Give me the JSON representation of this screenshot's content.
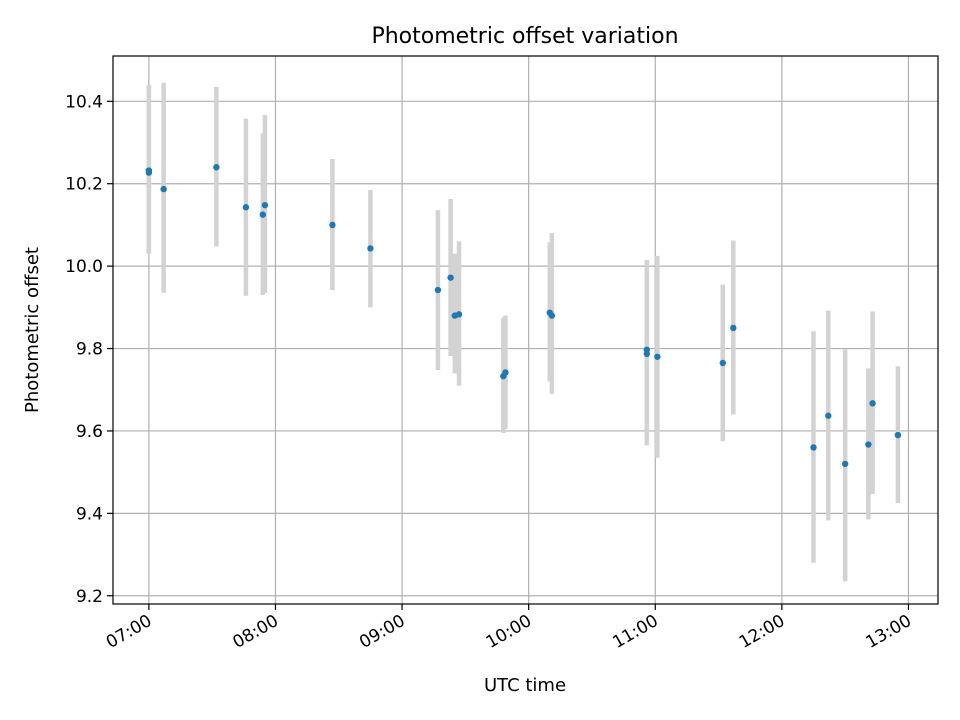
{
  "chart_data": {
    "type": "scatter",
    "title": "Photometric offset variation",
    "xlabel": "UTC time",
    "ylabel": "Photometric offset",
    "xlim": [
      "06:43",
      "13:14"
    ],
    "ylim": [
      9.18,
      10.51
    ],
    "x_ticks": [
      "07:00",
      "08:00",
      "09:00",
      "10:00",
      "11:00",
      "12:00",
      "13:00"
    ],
    "y_ticks": [
      "9.2",
      "9.4",
      "9.6",
      "9.8",
      "10.0",
      "10.2",
      "10.4"
    ],
    "grid": true,
    "point_color": "#1f77b4",
    "errorbar_color": "#d3d3d3",
    "points": [
      {
        "time": "07:00",
        "y": 10.232,
        "err_low": 10.03,
        "err_high": 10.44
      },
      {
        "time": "07:00",
        "y": 10.227,
        "err_low": 10.03,
        "err_high": 10.44
      },
      {
        "time": "07:07",
        "y": 10.187,
        "err_low": 9.935,
        "err_high": 10.445
      },
      {
        "time": "07:32",
        "y": 10.24,
        "err_low": 10.048,
        "err_high": 10.435
      },
      {
        "time": "07:46",
        "y": 10.143,
        "err_low": 9.928,
        "err_high": 10.358
      },
      {
        "time": "07:54",
        "y": 10.125,
        "err_low": 9.93,
        "err_high": 10.322
      },
      {
        "time": "07:55",
        "y": 10.148,
        "err_low": 9.935,
        "err_high": 10.367
      },
      {
        "time": "08:27",
        "y": 10.1,
        "err_low": 9.942,
        "err_high": 10.26
      },
      {
        "time": "08:45",
        "y": 10.043,
        "err_low": 9.9,
        "err_high": 10.185
      },
      {
        "time": "09:17",
        "y": 9.942,
        "err_low": 9.748,
        "err_high": 10.136
      },
      {
        "time": "09:23",
        "y": 9.972,
        "err_low": 9.782,
        "err_high": 10.163
      },
      {
        "time": "09:25",
        "y": 9.88,
        "err_low": 9.74,
        "err_high": 10.03
      },
      {
        "time": "09:27",
        "y": 9.883,
        "err_low": 9.71,
        "err_high": 10.06
      },
      {
        "time": "09:48",
        "y": 9.733,
        "err_low": 9.595,
        "err_high": 9.875
      },
      {
        "time": "09:49",
        "y": 9.742,
        "err_low": 9.605,
        "err_high": 9.88
      },
      {
        "time": "10:10",
        "y": 9.887,
        "err_low": 9.72,
        "err_high": 10.058
      },
      {
        "time": "10:11",
        "y": 9.88,
        "err_low": 9.69,
        "err_high": 10.08
      },
      {
        "time": "10:56",
        "y": 9.787,
        "err_low": 9.565,
        "err_high": 10.015
      },
      {
        "time": "10:56",
        "y": 9.797,
        "err_low": 9.58,
        "err_high": 10.01
      },
      {
        "time": "11:01",
        "y": 9.78,
        "err_low": 9.535,
        "err_high": 10.025
      },
      {
        "time": "11:32",
        "y": 9.765,
        "err_low": 9.575,
        "err_high": 9.955
      },
      {
        "time": "11:37",
        "y": 9.85,
        "err_low": 9.64,
        "err_high": 10.062
      },
      {
        "time": "12:15",
        "y": 9.56,
        "err_low": 9.28,
        "err_high": 9.842
      },
      {
        "time": "12:22",
        "y": 9.637,
        "err_low": 9.383,
        "err_high": 9.892
      },
      {
        "time": "12:30",
        "y": 9.52,
        "err_low": 9.235,
        "err_high": 9.798
      },
      {
        "time": "12:41",
        "y": 9.567,
        "err_low": 9.385,
        "err_high": 9.752
      },
      {
        "time": "12:43",
        "y": 9.667,
        "err_low": 9.447,
        "err_high": 9.89
      },
      {
        "time": "12:55",
        "y": 9.59,
        "err_low": 9.425,
        "err_high": 9.757
      }
    ]
  }
}
